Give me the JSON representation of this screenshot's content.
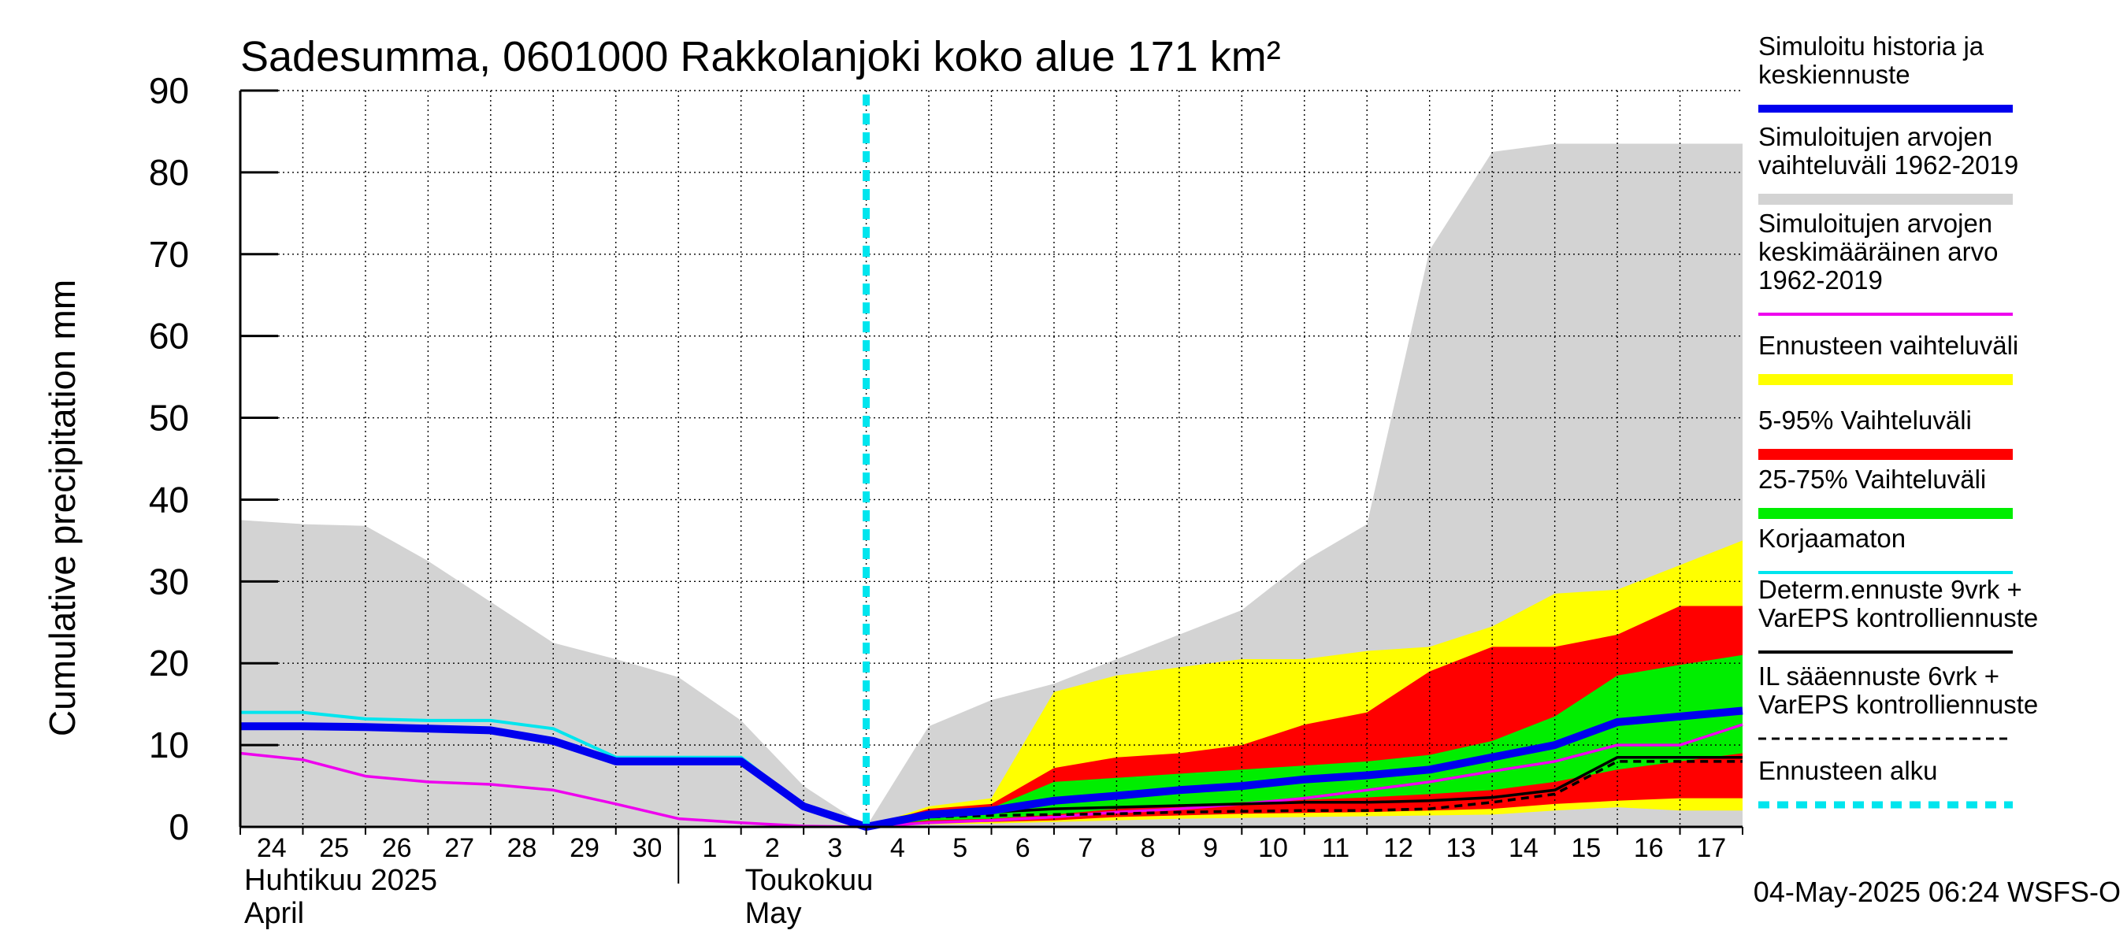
{
  "chart_data": {
    "type": "area",
    "title": "Sadesumma, 0601000 Rakkolanjoki koko alue 171 km²",
    "ylabel": "Cumulative precipitation   mm",
    "ylim": [
      0,
      90
    ],
    "yticks": [
      0,
      10,
      20,
      30,
      40,
      50,
      60,
      70,
      80,
      90
    ],
    "xlim": [
      0,
      24
    ],
    "forecast_start_x": 10,
    "day_labels": [
      {
        "x": 0.5,
        "label": "24"
      },
      {
        "x": 1.5,
        "label": "25"
      },
      {
        "x": 2.5,
        "label": "26"
      },
      {
        "x": 3.5,
        "label": "27"
      },
      {
        "x": 4.5,
        "label": "28"
      },
      {
        "x": 5.5,
        "label": "29"
      },
      {
        "x": 6.5,
        "label": "30"
      },
      {
        "x": 7.5,
        "label": "1"
      },
      {
        "x": 8.5,
        "label": "2"
      },
      {
        "x": 9.5,
        "label": "3"
      },
      {
        "x": 10.5,
        "label": "4"
      },
      {
        "x": 11.5,
        "label": "5"
      },
      {
        "x": 12.5,
        "label": "6"
      },
      {
        "x": 13.5,
        "label": "7"
      },
      {
        "x": 14.5,
        "label": "8"
      },
      {
        "x": 15.5,
        "label": "9"
      },
      {
        "x": 16.5,
        "label": "10"
      },
      {
        "x": 17.5,
        "label": "11"
      },
      {
        "x": 18.5,
        "label": "12"
      },
      {
        "x": 19.5,
        "label": "13"
      },
      {
        "x": 20.5,
        "label": "14"
      },
      {
        "x": 21.5,
        "label": "15"
      },
      {
        "x": 22.5,
        "label": "16"
      },
      {
        "x": 23.5,
        "label": "17"
      }
    ],
    "month_separator_x": 7,
    "month_labels": [
      {
        "x": 0,
        "line1": "Huhtikuu  2025",
        "line2": "April"
      },
      {
        "x": 8,
        "line1": "Toukokuu",
        "line2": "May"
      }
    ],
    "series": [
      {
        "name": "Simuloitujen arvojen vaihteluväli 1962-2019",
        "kind": "band",
        "color": "#d3d3d3",
        "x": [
          0,
          1,
          2,
          3,
          4,
          5,
          6,
          7,
          8,
          9,
          10,
          11,
          12,
          13,
          14,
          15,
          16,
          17,
          18,
          19,
          20,
          21,
          22,
          23,
          24
        ],
        "upper": [
          37.5,
          37,
          36.8,
          32.5,
          27.5,
          22.5,
          20.5,
          18.3,
          13,
          5,
          0,
          12.3,
          15.5,
          17.5,
          20.5,
          23.5,
          26.5,
          32.5,
          37,
          70.5,
          82.5,
          83.5,
          83.5,
          83.5,
          83.5
        ],
        "lower": [
          0,
          0,
          0,
          0,
          0,
          0,
          0,
          0,
          0,
          0,
          0,
          0,
          0,
          0,
          0,
          0,
          0,
          0,
          0,
          0,
          0,
          0,
          0,
          0,
          0
        ]
      },
      {
        "name": "Ennusteen vaihteluväli",
        "kind": "band",
        "color": "#ffff00",
        "x": [
          10,
          11,
          12,
          13,
          14,
          15,
          16,
          17,
          18,
          19,
          20,
          21,
          22,
          23,
          24
        ],
        "upper": [
          0,
          2.5,
          3.5,
          16.5,
          18.5,
          19.5,
          20.5,
          20.5,
          21.5,
          22,
          24.5,
          28.5,
          29,
          32,
          35
        ],
        "lower": [
          0,
          0.3,
          0.4,
          0.6,
          0.8,
          1.0,
          1.1,
          1.2,
          1.3,
          1.4,
          1.5,
          2.0,
          2.4,
          2.0,
          2.0
        ]
      },
      {
        "name": "5-95% Vaihteluväli",
        "kind": "band",
        "color": "#ff0000",
        "x": [
          10,
          11,
          12,
          13,
          14,
          15,
          16,
          17,
          18,
          19,
          20,
          21,
          22,
          23,
          24
        ],
        "upper": [
          0,
          2.2,
          2.8,
          7.2,
          8.5,
          9,
          10,
          12.5,
          14,
          19,
          22,
          22,
          23.5,
          27,
          27
        ],
        "lower": [
          0,
          0.5,
          0.6,
          0.8,
          1.2,
          1.4,
          1.6,
          1.7,
          1.8,
          2.0,
          2.2,
          2.8,
          3.2,
          3.5,
          3.5
        ]
      },
      {
        "name": "25-75% Vaihteluväli",
        "kind": "band",
        "color": "#00ee00",
        "x": [
          10,
          11,
          12,
          13,
          14,
          15,
          16,
          17,
          18,
          19,
          20,
          21,
          22,
          23,
          24
        ],
        "upper": [
          0,
          1.8,
          2.3,
          5.5,
          6,
          6.5,
          7,
          7.5,
          8,
          8.8,
          10.5,
          13.5,
          18.5,
          19.8,
          21
        ],
        "lower": [
          0,
          0.8,
          1.0,
          1.5,
          2.2,
          2.6,
          3.0,
          3.3,
          3.6,
          4.0,
          4.5,
          5.5,
          7,
          8,
          9
        ]
      },
      {
        "name": "Simuloitujen arvojen keskimääräinen arvo 1962-2019",
        "kind": "line",
        "color": "#ee00ee",
        "x": [
          0,
          1,
          2,
          3,
          4,
          5,
          6,
          7,
          8,
          9,
          10,
          11,
          12,
          13,
          14,
          15,
          16,
          17,
          18,
          19,
          20,
          21,
          22,
          23,
          24
        ],
        "values": [
          9,
          8.2,
          6.2,
          5.5,
          5.2,
          4.5,
          2.8,
          1,
          0.5,
          0.1,
          0,
          0.5,
          0.8,
          1.2,
          1.8,
          2.2,
          2.8,
          3.5,
          4.5,
          5.5,
          6.8,
          8,
          10,
          10,
          12.5
        ]
      },
      {
        "name": "Korjaamaton",
        "kind": "line",
        "color": "#00e5ee",
        "x": [
          0,
          1,
          2,
          3,
          4,
          5,
          6,
          7,
          8,
          9,
          10
        ],
        "values": [
          14,
          14,
          13.2,
          13,
          13,
          12,
          8.5,
          8.5,
          8.5,
          2.5,
          0
        ]
      },
      {
        "name": "IL sääennuste 6vrk + VarEPS kontrolliennuste",
        "kind": "line",
        "color": "#000000",
        "dashed": true,
        "x": [
          10,
          11,
          12,
          13,
          14,
          15,
          16,
          17,
          18,
          19,
          20,
          21,
          22,
          23,
          24
        ],
        "values": [
          0,
          1.2,
          1.4,
          1.5,
          1.6,
          1.8,
          1.9,
          2.0,
          2.0,
          2.2,
          3.0,
          4.0,
          8.0,
          8.0,
          8.0
        ]
      },
      {
        "name": "Determ.ennuste 9vrk + VarEPS kontrolliennuste",
        "kind": "line",
        "color": "#000000",
        "x": [
          10,
          11,
          12,
          13,
          14,
          15,
          16,
          17,
          18,
          19,
          20,
          21,
          22,
          23,
          24
        ],
        "values": [
          0,
          1.5,
          1.8,
          2.2,
          2.4,
          2.6,
          2.8,
          3.0,
          3.0,
          3.2,
          3.6,
          4.5,
          8.5,
          8.5,
          8.5
        ]
      },
      {
        "name": "Simuloitu historia ja keskiennuste",
        "kind": "line",
        "color": "#0000ee",
        "x": [
          0,
          1,
          2,
          3,
          4,
          5,
          6,
          7,
          8,
          9,
          10,
          11,
          12,
          13,
          14,
          15,
          16,
          17,
          18,
          19,
          20,
          21,
          22,
          23,
          24
        ],
        "values": [
          12.3,
          12.3,
          12.2,
          12,
          11.8,
          10.5,
          8,
          8,
          8,
          2.5,
          0,
          1.5,
          2,
          3.2,
          3.8,
          4.5,
          5,
          5.8,
          6.3,
          7,
          8.5,
          10,
          12.8,
          13.5,
          14.2
        ]
      }
    ]
  },
  "legend": [
    {
      "lines": [
        "Simuloitu historia ja",
        "keskiennuste"
      ],
      "color": "#0000ee",
      "style": "thick"
    },
    {
      "lines": [
        "Simuloitujen arvojen",
        "vaihteluväli 1962-2019"
      ],
      "color": "#d3d3d3",
      "style": "band"
    },
    {
      "lines": [
        "Simuloitujen arvojen",
        "keskimääräinen arvo",
        "   1962-2019"
      ],
      "color": "#ee00ee",
      "style": "line"
    },
    {
      "lines": [
        "Ennusteen vaihteluväli"
      ],
      "color": "#ffff00",
      "style": "band"
    },
    {
      "lines": [
        "5-95% Vaihteluväli"
      ],
      "color": "#ff0000",
      "style": "band"
    },
    {
      "lines": [
        "25-75% Vaihteluväli"
      ],
      "color": "#00ee00",
      "style": "band"
    },
    {
      "lines": [
        "Korjaamaton"
      ],
      "color": "#00e5ee",
      "style": "line"
    },
    {
      "lines": [
        "Determ.ennuste 9vrk +",
        "VarEPS kontrolliennuste"
      ],
      "color": "#000000",
      "style": "line"
    },
    {
      "lines": [
        "IL sääennuste 6vrk  +",
        "  VarEPS kontrolliennuste"
      ],
      "color": "#000000",
      "style": "dashed"
    },
    {
      "lines": [
        "Ennusteen alku"
      ],
      "color": "#00e5ee",
      "style": "dotted"
    }
  ],
  "footer": {
    "timestamp": "04-May-2025 06:24 WSFS-O"
  }
}
